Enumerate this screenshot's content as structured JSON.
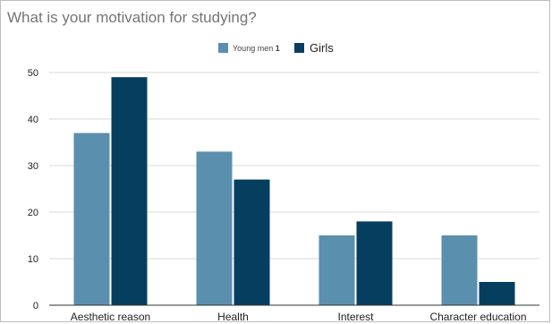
{
  "chart_data": {
    "type": "bar",
    "title": "What is your motivation for studying?",
    "categories": [
      "Aesthetic reason",
      "Health",
      "Interest",
      "Character education"
    ],
    "series": [
      {
        "name": "Young men",
        "color": "#5b8fae",
        "values": [
          37,
          33,
          15,
          15
        ]
      },
      {
        "name": "Girls",
        "color": "#063e5f",
        "values": [
          49,
          27,
          18,
          5
        ]
      }
    ],
    "y_ticks": [
      "0",
      "10",
      "20",
      "30",
      "40",
      "50"
    ],
    "ylim": [
      0,
      50
    ],
    "grid": true,
    "legend_position": "top-center",
    "legend_marker": "1"
  }
}
